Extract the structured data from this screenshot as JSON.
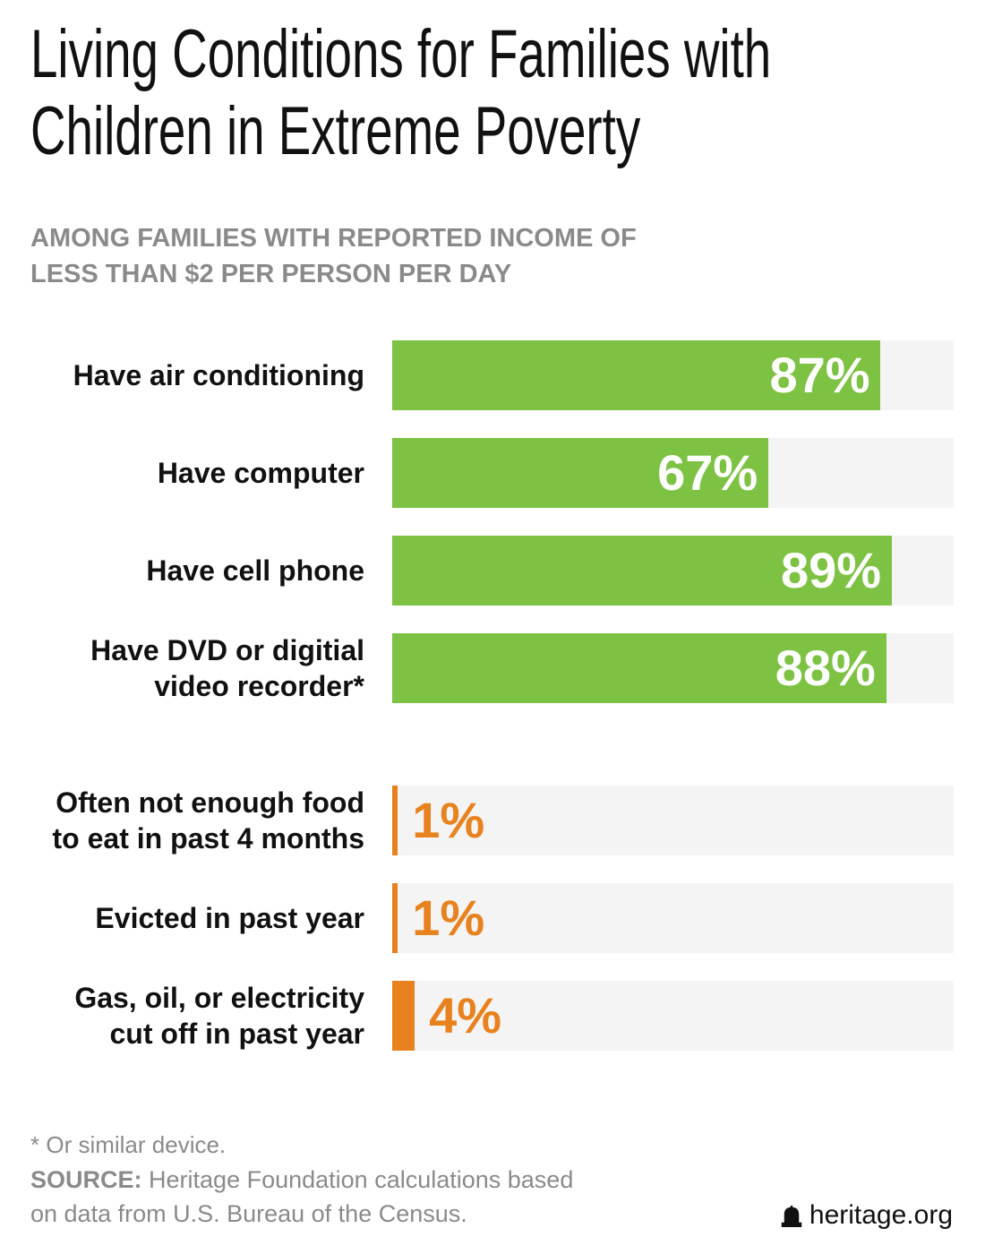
{
  "title": "Living Conditions for Families with Children in Extreme Poverty",
  "subtitle": "AMONG FAMILIES WITH REPORTED INCOME OF LESS THAN $2 PER PERSON PER DAY",
  "chart_data": [
    {
      "type": "bar",
      "color": "#7dc243",
      "label_position": "inside",
      "xlim": [
        0,
        100
      ],
      "categories": [
        "Have air conditioning",
        "Have computer",
        "Have cell phone",
        "Have DVD or digitial video recorder*"
      ],
      "values": [
        87,
        67,
        89,
        88
      ],
      "value_labels": [
        "87%",
        "67%",
        "89%",
        "88%"
      ]
    },
    {
      "type": "bar",
      "color": "#e8821e",
      "label_position": "outside",
      "xlim": [
        0,
        100
      ],
      "categories": [
        "Often not enough food to eat in past 4 months",
        "Evicted in past year",
        "Gas, oil, or electricity cut off in past year"
      ],
      "values": [
        1,
        1,
        4
      ],
      "value_labels": [
        "1%",
        "1%",
        "4%"
      ]
    }
  ],
  "footnote": "* Or similar device.",
  "source_label": "SOURCE:",
  "source": "Heritage Foundation calculations based on data from U.S. Bureau of the Census.",
  "logo": "heritage.org"
}
